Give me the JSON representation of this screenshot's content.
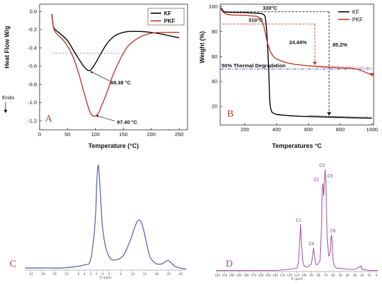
{
  "chart_data": [
    {
      "id": "A",
      "type": "line",
      "panel_label": "A",
      "xlabel": "Temperature (°C)",
      "ylabel": "Heat Flow W/g",
      "endo_label": "Endo",
      "xlim": [
        0,
        265
      ],
      "ylim": [
        -1.3,
        0.08
      ],
      "xticks": [
        0,
        50,
        100,
        150,
        200,
        250
      ],
      "yticks": [
        0.0,
        -0.2,
        -0.4,
        -0.6,
        -0.8,
        -1.0,
        -1.2
      ],
      "yticklabels": [
        "0.0",
        "-0.2",
        "-0.4",
        "-0.6",
        "-0.8",
        "-1.0",
        "-1.2"
      ],
      "legend_position": "top-right",
      "series": [
        {
          "name": "KF",
          "color": "#000000",
          "x": [
            22,
            25,
            30,
            40,
            50,
            60,
            70,
            80,
            85,
            88.38,
            92,
            100,
            110,
            120,
            130,
            140,
            150,
            160,
            180,
            200,
            220,
            250
          ],
          "y": [
            -0.03,
            -0.17,
            -0.21,
            -0.26,
            -0.32,
            -0.42,
            -0.52,
            -0.61,
            -0.64,
            -0.65,
            -0.64,
            -0.57,
            -0.46,
            -0.36,
            -0.29,
            -0.25,
            -0.23,
            -0.22,
            -0.22,
            -0.23,
            -0.25,
            -0.29
          ]
        },
        {
          "name": "PKF",
          "color": "#c0392b",
          "x": [
            22,
            25,
            30,
            40,
            50,
            60,
            70,
            80,
            90,
            97.4,
            105,
            110,
            120,
            130,
            140,
            150,
            160,
            180,
            200,
            220,
            250
          ],
          "y": [
            -0.04,
            -0.18,
            -0.24,
            -0.3,
            -0.38,
            -0.5,
            -0.68,
            -0.9,
            -1.1,
            -1.15,
            -1.12,
            -1.05,
            -0.9,
            -0.72,
            -0.58,
            -0.46,
            -0.37,
            -0.28,
            -0.24,
            -0.23,
            -0.23
          ]
        }
      ],
      "annotations": [
        {
          "text": "88.38 °C",
          "x": 88.38,
          "y": -0.65
        },
        {
          "text": "97.40 °C",
          "x": 97.4,
          "y": -1.15
        }
      ],
      "reference_lines": [
        {
          "y": -0.46,
          "color": "#4a7bd0",
          "style": "dashed"
        }
      ]
    },
    {
      "id": "B",
      "type": "line",
      "panel_label": "B",
      "xlabel": "Temperatures °C",
      "ylabel": "Weight (%)",
      "xlim": [
        45,
        1010
      ],
      "ylim": [
        5,
        102
      ],
      "xticks": [
        200,
        400,
        600,
        800,
        1000
      ],
      "yticks": [
        20,
        40,
        60,
        80,
        100
      ],
      "legend_position": "top-right",
      "series": [
        {
          "name": "KF",
          "color": "#000000",
          "x": [
            50,
            70,
            100,
            150,
            200,
            250,
            300,
            320,
            330,
            340,
            350,
            355,
            360,
            370,
            380,
            400,
            450,
            500,
            600,
            700,
            800,
            900,
            1000
          ],
          "y": [
            99,
            96,
            95.5,
            95.3,
            95.2,
            95.0,
            94.5,
            93.5,
            90,
            75,
            50,
            30,
            20,
            15.5,
            14.5,
            13.5,
            12.8,
            12.3,
            11.8,
            11.4,
            11.0,
            10.7,
            10.4
          ]
        },
        {
          "name": "PKF",
          "color": "#c0392b",
          "x": [
            50,
            70,
            100,
            150,
            200,
            250,
            280,
            300,
            310,
            320,
            330,
            340,
            350,
            360,
            370,
            380,
            400,
            450,
            500,
            600,
            700,
            800,
            900,
            1000
          ],
          "y": [
            98,
            95,
            93.5,
            93.2,
            93,
            92.5,
            92,
            90,
            88,
            84,
            78,
            72,
            68,
            64,
            62,
            60,
            58,
            55.5,
            54,
            52.5,
            51.5,
            50.8,
            50,
            45
          ]
        }
      ],
      "annotations": [
        {
          "text": "330°C",
          "x": 330,
          "y": 96
        },
        {
          "text": "310°C",
          "x": 310,
          "y": 86
        },
        {
          "text": "24.44%",
          "x": 640,
          "y": 70
        },
        {
          "text": "85.2%",
          "x": 740,
          "y": 55
        },
        {
          "text": "50% Thermal Degradation",
          "x": 60,
          "y": 50
        }
      ],
      "reference_lines": [
        {
          "y": 50,
          "color": "#2a3ad0",
          "style": "dashdot"
        }
      ]
    },
    {
      "id": "C",
      "type": "line",
      "panel_label": "C",
      "xlabel": "f1 (ppm)",
      "xlim": [
        26,
        -28
      ],
      "xticks": [
        24,
        20,
        16,
        12,
        8,
        6,
        4,
        2,
        0,
        -2,
        -6,
        -10,
        -14,
        -18,
        -22,
        -26
      ],
      "series": [
        {
          "name": "",
          "color": "#5b6aa8",
          "x": [
            26,
            20,
            14,
            10,
            6,
            4,
            2.5,
            2,
            1.5,
            1,
            0.5,
            0,
            -1,
            -2,
            -3,
            -5,
            -7,
            -9,
            -11,
            -12,
            -13,
            -14,
            -15,
            -16,
            -18,
            -20,
            -21,
            -22,
            -23,
            -24,
            -26,
            -28
          ],
          "y": [
            0.02,
            0.02,
            0.02,
            0.03,
            0.05,
            0.1,
            0.45,
            0.8,
            0.99,
            0.85,
            0.6,
            0.4,
            0.22,
            0.14,
            0.1,
            0.1,
            0.14,
            0.26,
            0.42,
            0.47,
            0.45,
            0.35,
            0.22,
            0.12,
            0.06,
            0.06,
            0.08,
            0.09,
            0.07,
            0.04,
            0.02,
            0.01
          ]
        }
      ]
    },
    {
      "id": "D",
      "type": "line",
      "panel_label": "D",
      "xlabel": "f1 (ppm)",
      "xlim": [
        222,
        -2
      ],
      "xticks": [
        220,
        210,
        200,
        190,
        180,
        170,
        160,
        150,
        140,
        130,
        120,
        110,
        100,
        90,
        80,
        70,
        60,
        50,
        40,
        30,
        20,
        10,
        0
      ],
      "series": [
        {
          "name": "",
          "color": "#a24a9e",
          "x": [
            222,
            200,
            180,
            160,
            140,
            120,
            110,
            108,
            106,
            105,
            104,
            102,
            100,
            95,
            90,
            88,
            87,
            86,
            84,
            82,
            78,
            76,
            75,
            74,
            73,
            72,
            71,
            70,
            69,
            68,
            66,
            64,
            63,
            62,
            61,
            60,
            58,
            55,
            50,
            40,
            30,
            21,
            20,
            10,
            0,
            -2
          ],
          "y": [
            0.01,
            0.01,
            0.01,
            0.01,
            0.01,
            0.02,
            0.03,
            0.08,
            0.3,
            0.44,
            0.3,
            0.1,
            0.05,
            0.04,
            0.07,
            0.16,
            0.22,
            0.16,
            0.07,
            0.06,
            0.1,
            0.4,
            0.78,
            0.82,
            0.7,
            0.8,
            0.95,
            0.85,
            0.55,
            0.3,
            0.14,
            0.18,
            0.3,
            0.34,
            0.25,
            0.1,
            0.05,
            0.03,
            0.03,
            0.02,
            0.02,
            0.05,
            0.02,
            0.01,
            0.01,
            0.01
          ]
        }
      ],
      "peak_labels": [
        {
          "text": "C1",
          "x": 105,
          "y": 0.44
        },
        {
          "text": "C4",
          "x": 87,
          "y": 0.22
        },
        {
          "text": "C2",
          "x": 75.5,
          "y": 0.82
        },
        {
          "text": "C3",
          "x": 71.5,
          "y": 0.95
        },
        {
          "text": "C5",
          "x": 67,
          "y": 0.85
        },
        {
          "text": "C6",
          "x": 62,
          "y": 0.34
        }
      ]
    }
  ]
}
